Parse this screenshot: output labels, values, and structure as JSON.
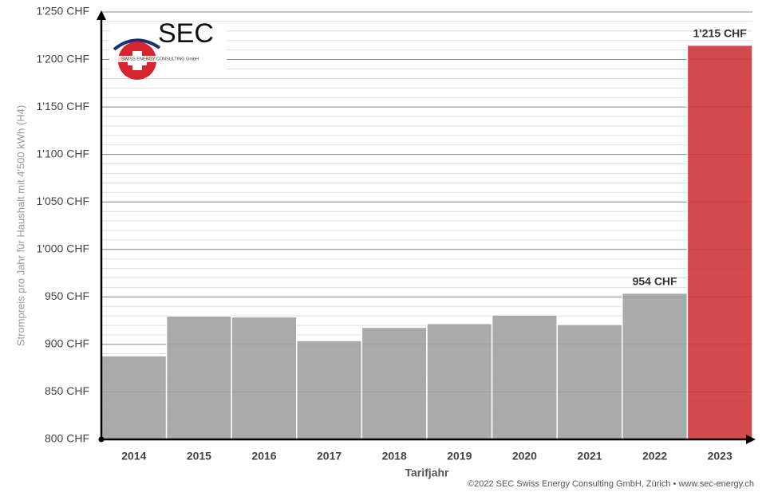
{
  "chart_data": {
    "type": "bar",
    "categories": [
      "2014",
      "2015",
      "2016",
      "2017",
      "2018",
      "2019",
      "2020",
      "2021",
      "2022",
      "2023"
    ],
    "values": [
      888,
      930,
      929,
      904,
      918,
      922,
      931,
      921,
      954,
      1215
    ],
    "value_labels": [
      null,
      null,
      null,
      null,
      null,
      null,
      null,
      null,
      "954 CHF",
      "1'215 CHF"
    ],
    "colors": [
      "#a3a3a3",
      "#a3a3a3",
      "#a3a3a3",
      "#a3a3a3",
      "#a3a3a3",
      "#a3a3a3",
      "#a3a3a3",
      "#a3a3a3",
      "#a3a3a3",
      "#d03a40"
    ],
    "ylim": [
      800,
      1250
    ],
    "yticks": [
      {
        "value": 800,
        "label": "800 CHF"
      },
      {
        "value": 850,
        "label": "850 CHF"
      },
      {
        "value": 900,
        "label": "900 CHF"
      },
      {
        "value": 950,
        "label": "950 CHF"
      },
      {
        "value": 1000,
        "label": "1'000 CHF"
      },
      {
        "value": 1050,
        "label": "1'050 CHF"
      },
      {
        "value": 1100,
        "label": "1'100 CHF"
      },
      {
        "value": 1150,
        "label": "1'150 CHF"
      },
      {
        "value": 1200,
        "label": "1'200 CHF"
      },
      {
        "value": 1250,
        "label": "1'250 CHF"
      }
    ],
    "minor_grid": 10,
    "grid": true,
    "x_label": "Tarifjahr",
    "y_label": "Strompreis pro Jahr für Haushalt mit 4'500 kWh (H4)",
    "source": "©2022 SEC Swiss Energy Consulting GmbH, Zürich • www.sec-energy.ch"
  },
  "logo": {
    "name": "SEC",
    "tagline": "SWISS ENERGY CONSULTING GmbH"
  }
}
